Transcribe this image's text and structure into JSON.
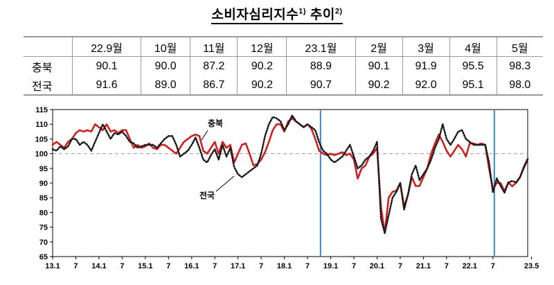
{
  "title": {
    "main": "소비자심리지수",
    "sup1": "1)",
    "rest": " 추이",
    "sup2": "2)"
  },
  "table": {
    "columns": [
      "22.9월",
      "10월",
      "11월",
      "12월",
      "23.1월",
      "2월",
      "3월",
      "4월",
      "5월"
    ],
    "rows": [
      {
        "label": "충북",
        "values": [
          "90.1",
          "90.0",
          "87.2",
          "90.2",
          "88.9",
          "90.1",
          "91.9",
          "95.5",
          "98.3"
        ]
      },
      {
        "label": "전국",
        "values": [
          "91.6",
          "89.0",
          "86.7",
          "90.2",
          "90.7",
          "90.2",
          "92.0",
          "95.1",
          "98.0"
        ]
      }
    ]
  },
  "chart_data": {
    "type": "line",
    "ylim": [
      65,
      115
    ],
    "yticks": [
      65,
      70,
      75,
      80,
      85,
      90,
      95,
      100,
      105,
      110,
      115
    ],
    "reference_line": 100,
    "grid": false,
    "xticks": [
      "13.1",
      "7",
      "14.1",
      "7",
      "15.1",
      "7",
      "16.1",
      "7",
      "17.1",
      "7",
      "18.1",
      "7",
      "19.1",
      "7",
      "20.1",
      "7",
      "21.1",
      "7",
      "22.1",
      "7",
      "23.5"
    ],
    "xtick_index": [
      0,
      6,
      12,
      18,
      24,
      30,
      36,
      42,
      48,
      54,
      60,
      66,
      72,
      78,
      84,
      90,
      96,
      102,
      108,
      114,
      124
    ],
    "vlines_index": [
      69,
      114
    ],
    "colors": {
      "충북": "#cc1f1f",
      "전국": "#1a1a1a",
      "vline": "#3a86c8",
      "reference": "#999999"
    },
    "series": [
      {
        "name": "충북",
        "style": "solid",
        "values": [
          103,
          104,
          103,
          102,
          104,
          105,
          107,
          108,
          107.5,
          108,
          107.5,
          110,
          109,
          108,
          110,
          107.5,
          108,
          107,
          108,
          108,
          105,
          102,
          103,
          102,
          102.5,
          103.5,
          102,
          101.5,
          103,
          103,
          102,
          101,
          100,
          102,
          104,
          105,
          106,
          106.5,
          106,
          101,
          100,
          102,
          104,
          100,
          104,
          102,
          103,
          97,
          100,
          103,
          103.5,
          100,
          96,
          96.5,
          98,
          100.5,
          104,
          108,
          110,
          110,
          107.5,
          111,
          112,
          111,
          110,
          109,
          110,
          108.5,
          105,
          101,
          100,
          99.5,
          100,
          99.5,
          100,
          100.5,
          99.5,
          100,
          98,
          91.5,
          95,
          96,
          99,
          100,
          102,
          82,
          73,
          85,
          87,
          87.5,
          90,
          82,
          86,
          92,
          89,
          89,
          92,
          95,
          100,
          103.5,
          106.5,
          104,
          101,
          99,
          101,
          103,
          101.5,
          99,
          103.5,
          103.5,
          103,
          103.5,
          103,
          95,
          88,
          90.1,
          90.0,
          87.2,
          90.2,
          88.9,
          90.1,
          91.9,
          95.5,
          98.3
        ]
      },
      {
        "name": "전국",
        "style": "dotted",
        "values": [
          101.5,
          101,
          102.5,
          101.5,
          102.5,
          105,
          105,
          103,
          104,
          103,
          101,
          104,
          107,
          110,
          107.5,
          105,
          107,
          106.5,
          107.5,
          106,
          104,
          103.5,
          102,
          102.5,
          103,
          103,
          103,
          102,
          103.5,
          105,
          106,
          106,
          103,
          99,
          100,
          101,
          103,
          105.5,
          102,
          98,
          97,
          99.5,
          101.5,
          98,
          103,
          99,
          102,
          95.5,
          93,
          92,
          93,
          94,
          95,
          96,
          100,
          106,
          110,
          112.5,
          112,
          111,
          108,
          110,
          113,
          111,
          110,
          109,
          110,
          109,
          108,
          104,
          101,
          100,
          98,
          97,
          98,
          99,
          101,
          103,
          99,
          95,
          96,
          98,
          99,
          101,
          104,
          78,
          73,
          79,
          85,
          87,
          90,
          81,
          86,
          93,
          96,
          91,
          93,
          95,
          98,
          102,
          105,
          110,
          105,
          103,
          105,
          107.5,
          108,
          105,
          104,
          103,
          103,
          103,
          103,
          97,
          86.7,
          91.6,
          89.0,
          86.7,
          90.2,
          90.7,
          90.2,
          92.0,
          95.1,
          98.0
        ]
      }
    ],
    "annotations": [
      {
        "text": "충북",
        "series": "충북"
      },
      {
        "text": "전국",
        "series": "전국"
      }
    ]
  }
}
